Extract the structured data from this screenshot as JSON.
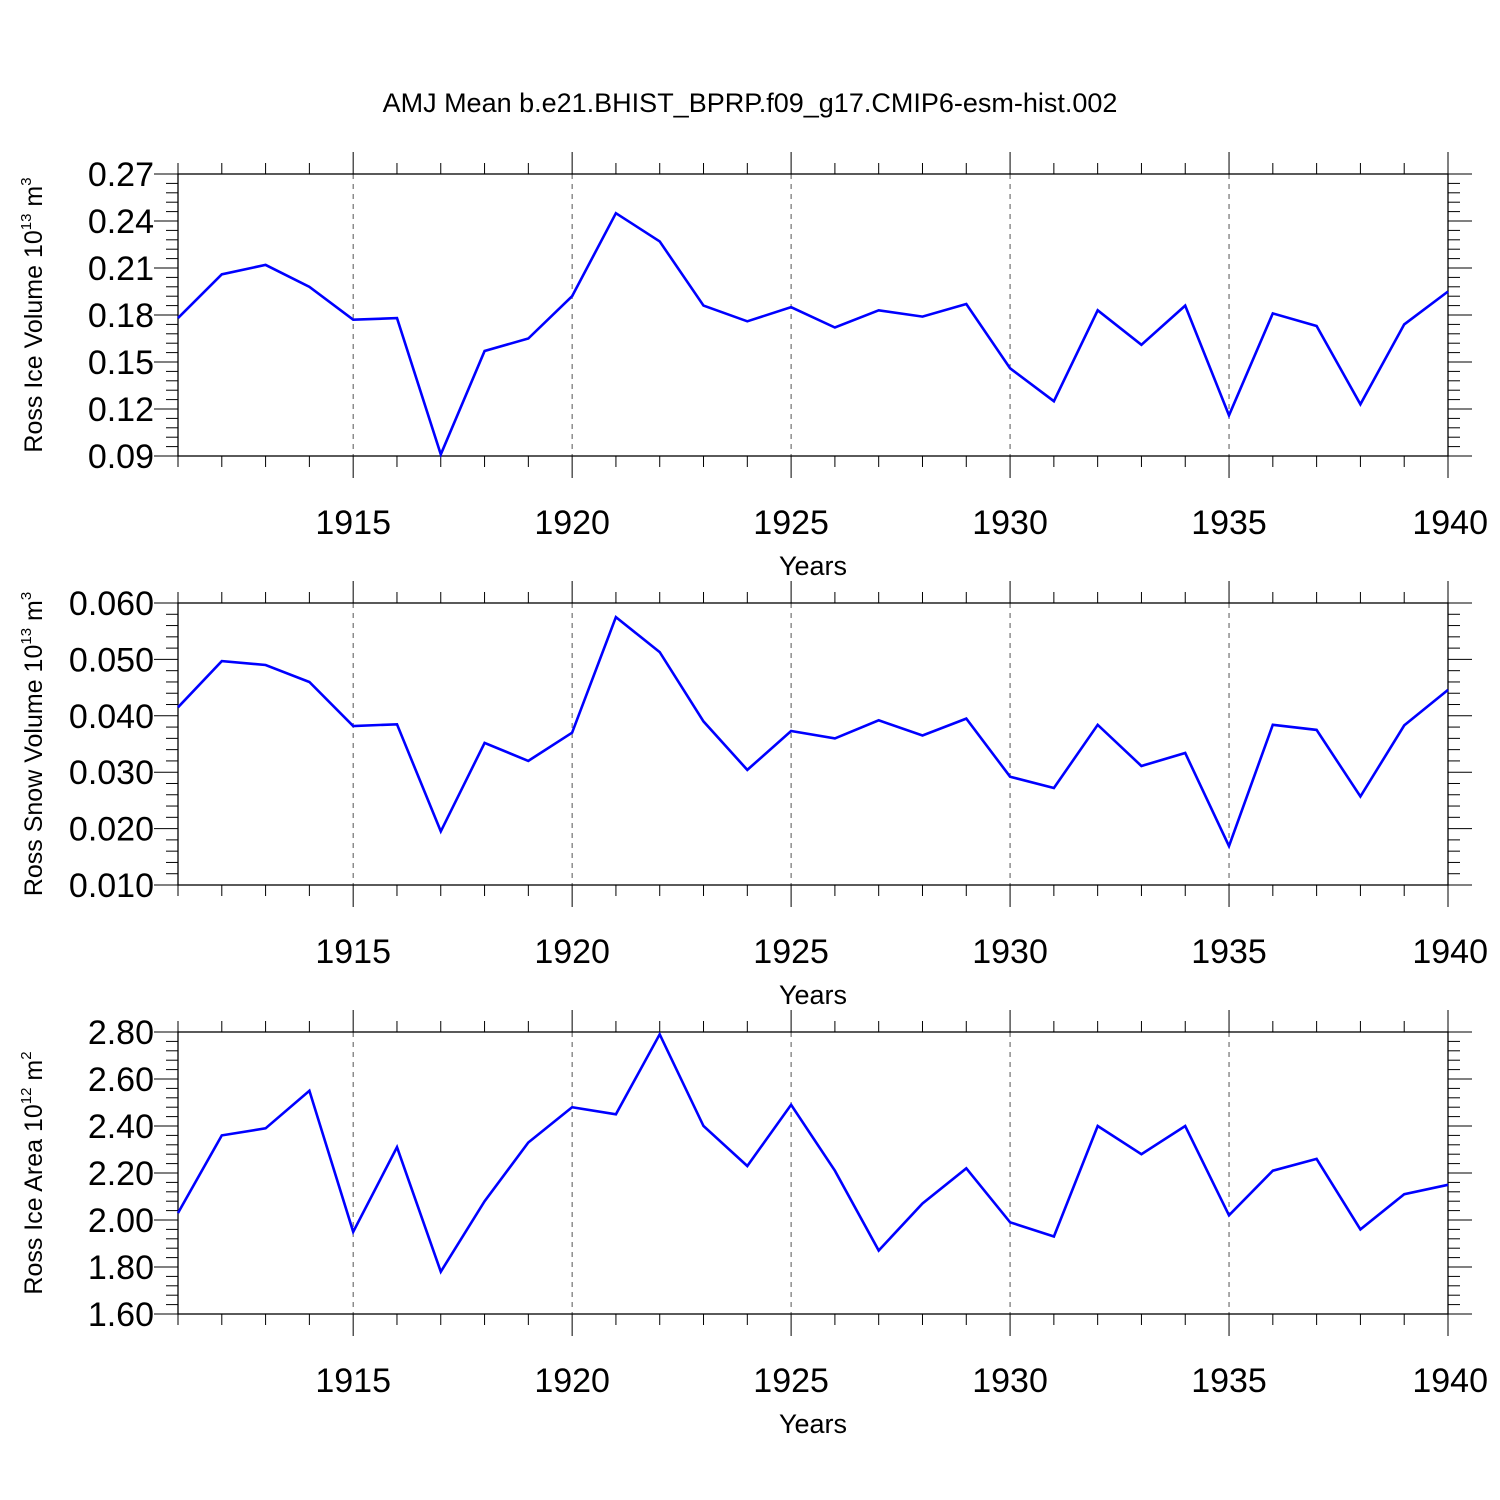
{
  "title": "AMJ Mean b.e21.BHIST_BPRP.f09_g17.CMIP6-esm-hist.002",
  "colors": {
    "series": "#0000ff",
    "axis": "#000000",
    "grid": "#555555"
  },
  "chart_data": [
    {
      "type": "line",
      "xlabel": "Years",
      "ylabel": {
        "main": "Ross Ice Volume 10",
        "exp": "13",
        "unit": " m",
        "unit_exp": "3"
      },
      "xlim": [
        1911,
        1940
      ],
      "ylim": [
        0.09,
        0.27
      ],
      "xticks": [
        "1915",
        "1920",
        "1925",
        "1930",
        "1935",
        "1940"
      ],
      "yticks": [
        "0.09",
        "0.12",
        "0.15",
        "0.18",
        "0.21",
        "0.24",
        "0.27"
      ],
      "grid": "vertical dashed at major x ticks",
      "x": [
        1911,
        1912,
        1913,
        1914,
        1915,
        1916,
        1917,
        1918,
        1919,
        1920,
        1921,
        1922,
        1923,
        1924,
        1925,
        1926,
        1927,
        1928,
        1929,
        1930,
        1931,
        1932,
        1933,
        1934,
        1935,
        1936,
        1937,
        1938,
        1939,
        1940
      ],
      "series": [
        {
          "values": [
            0.178,
            0.206,
            0.212,
            0.198,
            0.177,
            0.178,
            0.091,
            0.157,
            0.165,
            0.192,
            0.245,
            0.227,
            0.186,
            0.176,
            0.185,
            0.172,
            0.183,
            0.179,
            0.187,
            0.146,
            0.125,
            0.183,
            0.161,
            0.186,
            0.116,
            0.181,
            0.173,
            0.123,
            0.174,
            0.195
          ]
        }
      ]
    },
    {
      "type": "line",
      "xlabel": "Years",
      "ylabel": {
        "main": "Ross Snow Volume 10",
        "exp": "13",
        "unit": " m",
        "unit_exp": "3"
      },
      "xlim": [
        1911,
        1940
      ],
      "ylim": [
        0.01,
        0.06
      ],
      "xticks": [
        "1915",
        "1920",
        "1925",
        "1930",
        "1935",
        "1940"
      ],
      "yticks": [
        "0.010",
        "0.020",
        "0.030",
        "0.040",
        "0.050",
        "0.060"
      ],
      "grid": "vertical dashed at major x ticks",
      "x": [
        1911,
        1912,
        1913,
        1914,
        1915,
        1916,
        1917,
        1918,
        1919,
        1920,
        1921,
        1922,
        1923,
        1924,
        1925,
        1926,
        1927,
        1928,
        1929,
        1930,
        1931,
        1932,
        1933,
        1934,
        1935,
        1936,
        1937,
        1938,
        1939,
        1940
      ],
      "series": [
        {
          "values": [
            0.0415,
            0.0497,
            0.049,
            0.046,
            0.0382,
            0.0385,
            0.0195,
            0.0352,
            0.032,
            0.037,
            0.0575,
            0.0513,
            0.039,
            0.0304,
            0.0373,
            0.036,
            0.0392,
            0.0365,
            0.0395,
            0.0292,
            0.0272,
            0.0384,
            0.0311,
            0.0334,
            0.0169,
            0.0384,
            0.0375,
            0.0257,
            0.0383,
            0.0446
          ]
        }
      ]
    },
    {
      "type": "line",
      "xlabel": "Years",
      "ylabel": {
        "main": "Ross Ice Area 10",
        "exp": "12",
        "unit": " m",
        "unit_exp": "2"
      },
      "xlim": [
        1911,
        1940
      ],
      "ylim": [
        1.6,
        2.8
      ],
      "xticks": [
        "1915",
        "1920",
        "1925",
        "1930",
        "1935",
        "1940"
      ],
      "yticks": [
        "1.60",
        "1.80",
        "2.00",
        "2.20",
        "2.40",
        "2.60",
        "2.80"
      ],
      "grid": "vertical dashed at major x ticks",
      "x": [
        1911,
        1912,
        1913,
        1914,
        1915,
        1916,
        1917,
        1918,
        1919,
        1920,
        1921,
        1922,
        1923,
        1924,
        1925,
        1926,
        1927,
        1928,
        1929,
        1930,
        1931,
        1932,
        1933,
        1934,
        1935,
        1936,
        1937,
        1938,
        1939,
        1940
      ],
      "series": [
        {
          "values": [
            2.03,
            2.36,
            2.39,
            2.55,
            1.95,
            2.31,
            1.78,
            2.08,
            2.33,
            2.48,
            2.45,
            2.79,
            2.4,
            2.23,
            2.49,
            2.21,
            1.87,
            2.07,
            2.22,
            1.99,
            1.93,
            2.4,
            2.28,
            2.4,
            2.02,
            2.21,
            2.26,
            1.96,
            2.11,
            2.15
          ]
        }
      ]
    }
  ]
}
